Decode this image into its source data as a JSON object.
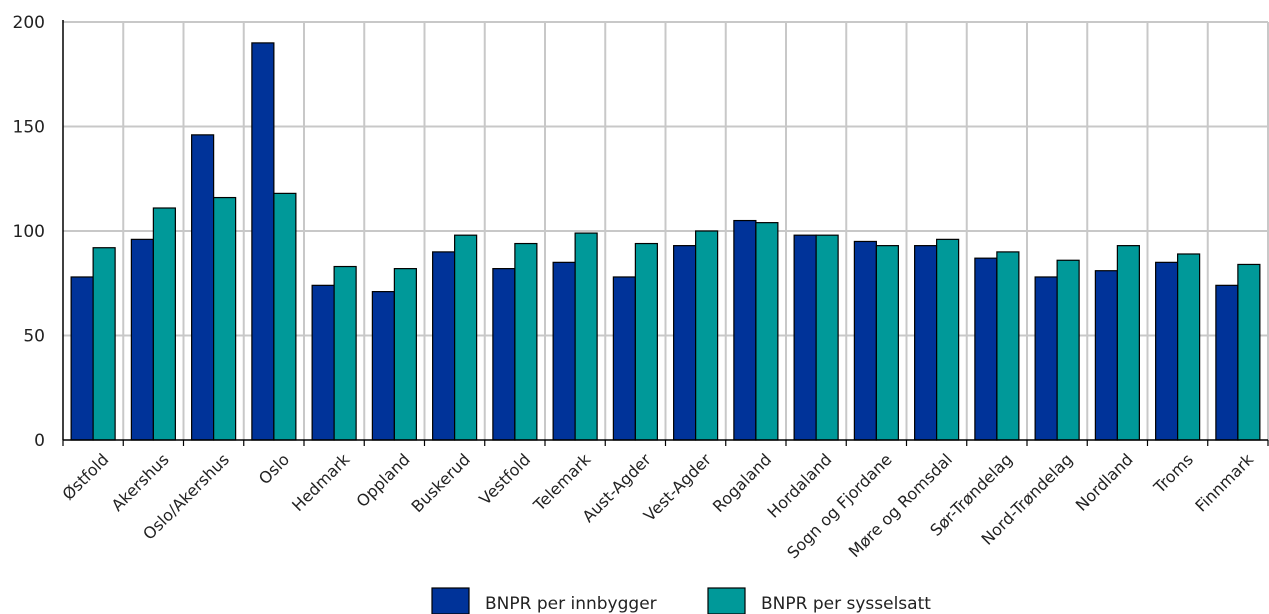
{
  "chart_data": {
    "type": "bar",
    "categories": [
      "Østfold",
      "Akershus",
      "Oslo/Akershus",
      "Oslo",
      "Hedmark",
      "Oppland",
      "Buskerud",
      "Vestfold",
      "Telemark",
      "Aust-Agder",
      "Vest-Agder",
      "Rogaland",
      "Hordaland",
      "Sogn og Fjordane",
      "Møre og Romsdal",
      "Sør-Trøndelag",
      "Nord-Trøndelag",
      "Nordland",
      "Troms",
      "Finnmark"
    ],
    "series": [
      {
        "name": "BNPR per innbygger",
        "color": "#003399",
        "values": [
          78,
          96,
          146,
          190,
          74,
          71,
          90,
          82,
          85,
          78,
          93,
          105,
          98,
          95,
          93,
          87,
          78,
          81,
          85,
          74
        ]
      },
      {
        "name": "BNPR per sysselsatt",
        "color": "#009999",
        "values": [
          92,
          111,
          116,
          118,
          83,
          82,
          98,
          94,
          99,
          94,
          100,
          104,
          98,
          93,
          96,
          90,
          86,
          93,
          89,
          84
        ]
      }
    ],
    "yticks": [
      "0",
      "50",
      "100",
      "150",
      "200"
    ],
    "ylim": [
      0,
      200
    ],
    "grid": true,
    "legend_position": "bottom-center"
  }
}
